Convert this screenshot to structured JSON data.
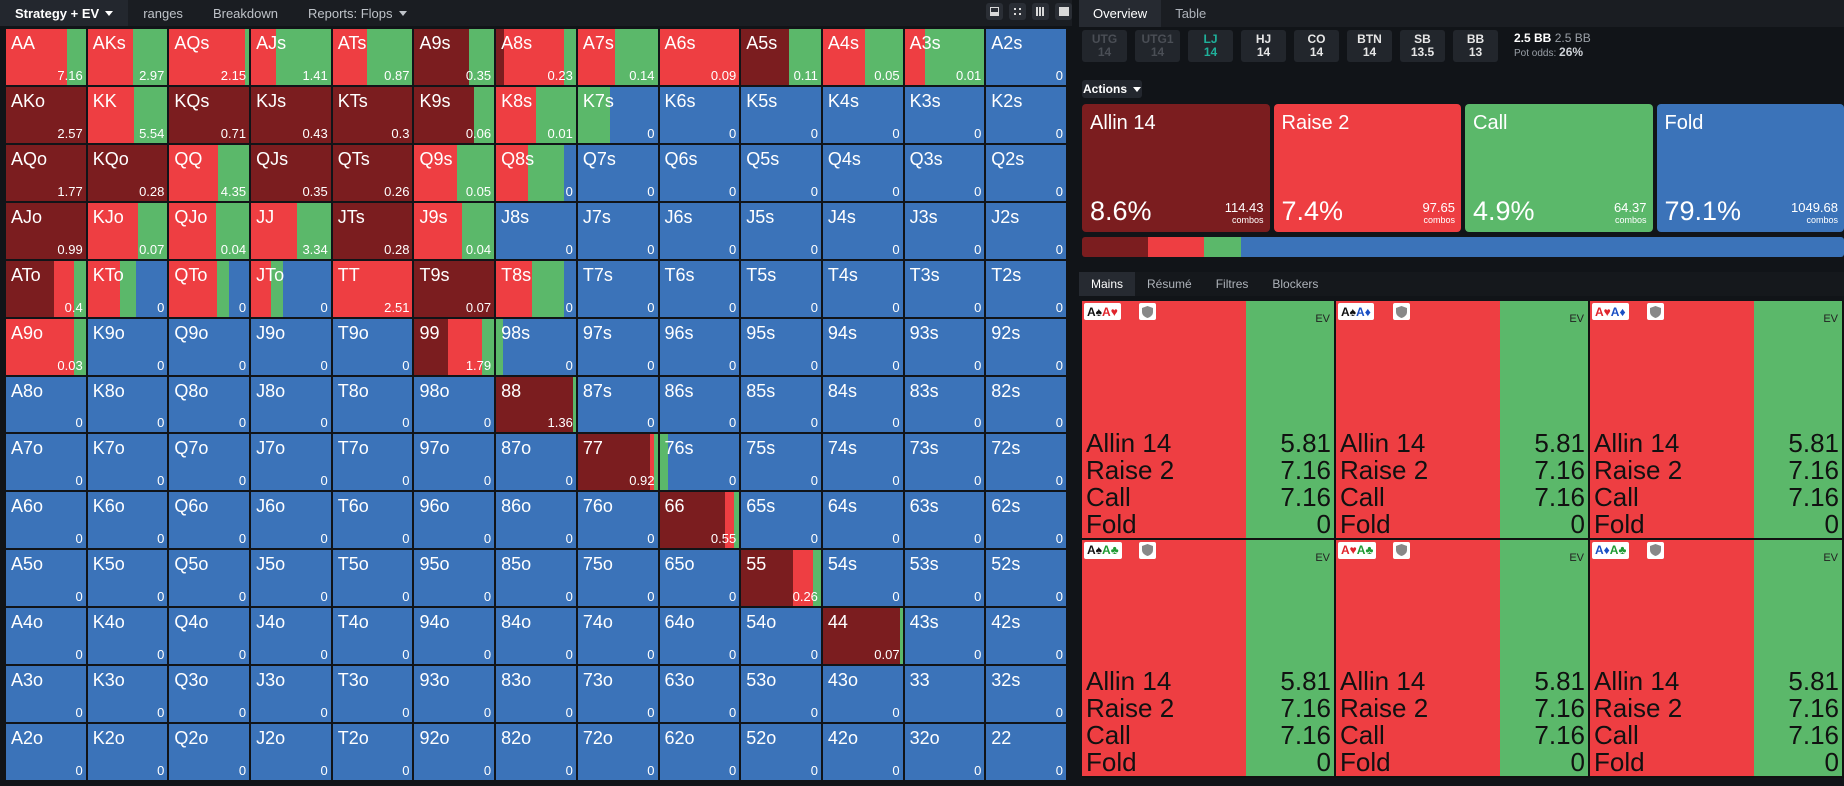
{
  "colors": {
    "allin": "#7b1d1f",
    "raise": "#ee3e42",
    "call": "#5bb86a",
    "fold": "#3b73b9"
  },
  "topbar": {
    "tabs": [
      {
        "label": "Strategy + EV",
        "caret": true,
        "active": true
      },
      {
        "label": "ranges"
      },
      {
        "label": "Breakdown"
      },
      {
        "label": "Reports: Flops",
        "caret": true
      }
    ],
    "view_icons": [
      "panel-icon",
      "expand-icon",
      "grid-icon",
      "fullscreen-icon"
    ]
  },
  "grid": [
    [
      [
        "AA",
        0,
        77,
        23,
        0,
        "7.16"
      ],
      [
        "AKs",
        0,
        57,
        43,
        0,
        "2.97"
      ],
      [
        "AQs",
        0,
        95,
        5,
        0,
        "2.15"
      ],
      [
        "AJs",
        0,
        31,
        69,
        0,
        "1.41"
      ],
      [
        "ATs",
        0,
        43,
        57,
        0,
        "0.87"
      ],
      [
        "A9s",
        68,
        0,
        32,
        0,
        "0.35"
      ],
      [
        "A8s",
        10,
        75,
        15,
        0,
        "0.23"
      ],
      [
        "A7s",
        0,
        46,
        54,
        0,
        "0.14"
      ],
      [
        "A6s",
        0,
        100,
        0,
        0,
        "0.09"
      ],
      [
        "A5s",
        60,
        0,
        40,
        0,
        "0.11"
      ],
      [
        "A4s",
        0,
        53,
        47,
        0,
        "0.05"
      ],
      [
        "A3s",
        0,
        25,
        75,
        0,
        "0.01"
      ],
      [
        "A2s",
        0,
        0,
        0,
        100,
        "0"
      ]
    ],
    [
      [
        "AKo",
        100,
        0,
        0,
        0,
        "2.57"
      ],
      [
        "KK",
        0,
        58,
        42,
        0,
        "5.54"
      ],
      [
        "KQs",
        100,
        0,
        0,
        0,
        "0.71"
      ],
      [
        "KJs",
        100,
        0,
        0,
        0,
        "0.43"
      ],
      [
        "KTs",
        100,
        0,
        0,
        0,
        "0.3"
      ],
      [
        "K9s",
        75,
        0,
        25,
        0,
        "0.06"
      ],
      [
        "K8s",
        0,
        50,
        50,
        0,
        "0.01"
      ],
      [
        "K7s",
        0,
        0,
        40,
        60,
        "0"
      ],
      [
        "K6s",
        0,
        0,
        0,
        100,
        "0"
      ],
      [
        "K5s",
        0,
        0,
        0,
        100,
        "0"
      ],
      [
        "K4s",
        0,
        0,
        0,
        100,
        "0"
      ],
      [
        "K3s",
        0,
        0,
        0,
        100,
        "0"
      ],
      [
        "K2s",
        0,
        0,
        0,
        100,
        "0"
      ]
    ],
    [
      [
        "AQo",
        100,
        0,
        0,
        0,
        "1.77"
      ],
      [
        "KQo",
        100,
        0,
        0,
        0,
        "0.28"
      ],
      [
        "QQ",
        0,
        61,
        39,
        0,
        "4.35"
      ],
      [
        "QJs",
        100,
        0,
        0,
        0,
        "0.35"
      ],
      [
        "QTs",
        100,
        0,
        0,
        0,
        "0.26"
      ],
      [
        "Q9s",
        0,
        53,
        47,
        0,
        "0.05"
      ],
      [
        "Q8s",
        0,
        40,
        45,
        15,
        "0"
      ],
      [
        "Q7s",
        0,
        0,
        0,
        100,
        "0"
      ],
      [
        "Q6s",
        0,
        0,
        0,
        100,
        "0"
      ],
      [
        "Q5s",
        0,
        0,
        0,
        100,
        "0"
      ],
      [
        "Q4s",
        0,
        0,
        0,
        100,
        "0"
      ],
      [
        "Q3s",
        0,
        0,
        0,
        100,
        "0"
      ],
      [
        "Q2s",
        0,
        0,
        0,
        100,
        "0"
      ]
    ],
    [
      [
        "AJo",
        100,
        0,
        0,
        0,
        "0.99"
      ],
      [
        "KJo",
        0,
        63,
        37,
        0,
        "0.07"
      ],
      [
        "QJo",
        0,
        58,
        42,
        0,
        "0.04"
      ],
      [
        "JJ",
        0,
        58,
        42,
        0,
        "3.34"
      ],
      [
        "JTs",
        100,
        0,
        0,
        0,
        "0.28"
      ],
      [
        "J9s",
        0,
        60,
        40,
        0,
        "0.04"
      ],
      [
        "J8s",
        0,
        0,
        0,
        100,
        "0"
      ],
      [
        "J7s",
        0,
        0,
        0,
        100,
        "0"
      ],
      [
        "J6s",
        0,
        0,
        0,
        100,
        "0"
      ],
      [
        "J5s",
        0,
        0,
        0,
        100,
        "0"
      ],
      [
        "J4s",
        0,
        0,
        0,
        100,
        "0"
      ],
      [
        "J3s",
        0,
        0,
        0,
        100,
        "0"
      ],
      [
        "J2s",
        0,
        0,
        0,
        100,
        "0"
      ]
    ],
    [
      [
        "ATo",
        60,
        25,
        15,
        0,
        "0.4"
      ],
      [
        "KTo",
        0,
        40,
        20,
        40,
        "0"
      ],
      [
        "QTo",
        0,
        60,
        15,
        25,
        "0"
      ],
      [
        "JTo",
        0,
        25,
        15,
        60,
        "0"
      ],
      [
        "TT",
        0,
        100,
        0,
        0,
        "2.51"
      ],
      [
        "T9s",
        100,
        0,
        0,
        0,
        "0.07"
      ],
      [
        "T8s",
        0,
        45,
        40,
        15,
        "0"
      ],
      [
        "T7s",
        0,
        0,
        0,
        100,
        "0"
      ],
      [
        "T6s",
        0,
        0,
        0,
        100,
        "0"
      ],
      [
        "T5s",
        0,
        0,
        0,
        100,
        "0"
      ],
      [
        "T4s",
        0,
        0,
        0,
        100,
        "0"
      ],
      [
        "T3s",
        0,
        0,
        0,
        100,
        "0"
      ],
      [
        "T2s",
        0,
        0,
        0,
        100,
        "0"
      ]
    ],
    [
      [
        "A9o",
        0,
        85,
        15,
        0,
        "0.03"
      ],
      [
        "K9o",
        0,
        0,
        0,
        100,
        "0"
      ],
      [
        "Q9o",
        0,
        0,
        0,
        100,
        "0"
      ],
      [
        "J9o",
        0,
        0,
        0,
        100,
        "0"
      ],
      [
        "T9o",
        0,
        0,
        0,
        100,
        "0"
      ],
      [
        "99",
        42,
        43,
        15,
        0,
        "1.79"
      ],
      [
        "98s",
        0,
        0,
        8,
        92,
        "0"
      ],
      [
        "97s",
        0,
        0,
        0,
        100,
        "0"
      ],
      [
        "96s",
        0,
        0,
        0,
        100,
        "0"
      ],
      [
        "95s",
        0,
        0,
        0,
        100,
        "0"
      ],
      [
        "94s",
        0,
        0,
        0,
        100,
        "0"
      ],
      [
        "93s",
        0,
        0,
        0,
        100,
        "0"
      ],
      [
        "92s",
        0,
        0,
        0,
        100,
        "0"
      ]
    ],
    [
      [
        "A8o",
        0,
        0,
        0,
        100,
        "0"
      ],
      [
        "K8o",
        0,
        0,
        0,
        100,
        "0"
      ],
      [
        "Q8o",
        0,
        0,
        0,
        100,
        "0"
      ],
      [
        "J8o",
        0,
        0,
        0,
        100,
        "0"
      ],
      [
        "T8o",
        0,
        0,
        0,
        100,
        "0"
      ],
      [
        "98o",
        0,
        0,
        0,
        100,
        "0"
      ],
      [
        "88",
        96,
        0,
        4,
        0,
        "1.36"
      ],
      [
        "87s",
        0,
        0,
        0,
        100,
        "0"
      ],
      [
        "86s",
        0,
        0,
        0,
        100,
        "0"
      ],
      [
        "85s",
        0,
        0,
        0,
        100,
        "0"
      ],
      [
        "84s",
        0,
        0,
        0,
        100,
        "0"
      ],
      [
        "83s",
        0,
        0,
        0,
        100,
        "0"
      ],
      [
        "82s",
        0,
        0,
        0,
        100,
        "0"
      ]
    ],
    [
      [
        "A7o",
        0,
        0,
        0,
        100,
        "0"
      ],
      [
        "K7o",
        0,
        0,
        0,
        100,
        "0"
      ],
      [
        "Q7o",
        0,
        0,
        0,
        100,
        "0"
      ],
      [
        "J7o",
        0,
        0,
        0,
        100,
        "0"
      ],
      [
        "T7o",
        0,
        0,
        0,
        100,
        "0"
      ],
      [
        "97o",
        0,
        0,
        0,
        100,
        "0"
      ],
      [
        "87o",
        0,
        0,
        0,
        100,
        "0"
      ],
      [
        "77",
        90,
        6,
        4,
        0,
        "0.92"
      ],
      [
        "76s",
        0,
        0,
        10,
        90,
        "0"
      ],
      [
        "75s",
        0,
        0,
        0,
        100,
        "0"
      ],
      [
        "74s",
        0,
        0,
        0,
        100,
        "0"
      ],
      [
        "73s",
        0,
        0,
        0,
        100,
        "0"
      ],
      [
        "72s",
        0,
        0,
        0,
        100,
        "0"
      ]
    ],
    [
      [
        "A6o",
        0,
        0,
        0,
        100,
        "0"
      ],
      [
        "K6o",
        0,
        0,
        0,
        100,
        "0"
      ],
      [
        "Q6o",
        0,
        0,
        0,
        100,
        "0"
      ],
      [
        "J6o",
        0,
        0,
        0,
        100,
        "0"
      ],
      [
        "T6o",
        0,
        0,
        0,
        100,
        "0"
      ],
      [
        "96o",
        0,
        0,
        0,
        100,
        "0"
      ],
      [
        "86o",
        0,
        0,
        0,
        100,
        "0"
      ],
      [
        "76o",
        0,
        0,
        0,
        100,
        "0"
      ],
      [
        "66",
        82,
        12,
        6,
        0,
        "0.55"
      ],
      [
        "65s",
        0,
        0,
        0,
        100,
        "0"
      ],
      [
        "64s",
        0,
        0,
        0,
        100,
        "0"
      ],
      [
        "63s",
        0,
        0,
        0,
        100,
        "0"
      ],
      [
        "62s",
        0,
        0,
        0,
        100,
        "0"
      ]
    ],
    [
      [
        "A5o",
        0,
        0,
        0,
        100,
        "0"
      ],
      [
        "K5o",
        0,
        0,
        0,
        100,
        "0"
      ],
      [
        "Q5o",
        0,
        0,
        0,
        100,
        "0"
      ],
      [
        "J5o",
        0,
        0,
        0,
        100,
        "0"
      ],
      [
        "T5o",
        0,
        0,
        0,
        100,
        "0"
      ],
      [
        "95o",
        0,
        0,
        0,
        100,
        "0"
      ],
      [
        "85o",
        0,
        0,
        0,
        100,
        "0"
      ],
      [
        "75o",
        0,
        0,
        0,
        100,
        "0"
      ],
      [
        "65o",
        0,
        0,
        0,
        100,
        "0"
      ],
      [
        "55",
        65,
        25,
        10,
        0,
        "0.26"
      ],
      [
        "54s",
        0,
        0,
        0,
        100,
        "0"
      ],
      [
        "53s",
        0,
        0,
        0,
        100,
        "0"
      ],
      [
        "52s",
        0,
        0,
        0,
        100,
        "0"
      ]
    ],
    [
      [
        "A4o",
        0,
        0,
        0,
        100,
        "0"
      ],
      [
        "K4o",
        0,
        0,
        0,
        100,
        "0"
      ],
      [
        "Q4o",
        0,
        0,
        0,
        100,
        "0"
      ],
      [
        "J4o",
        0,
        0,
        0,
        100,
        "0"
      ],
      [
        "T4o",
        0,
        0,
        0,
        100,
        "0"
      ],
      [
        "94o",
        0,
        0,
        0,
        100,
        "0"
      ],
      [
        "84o",
        0,
        0,
        0,
        100,
        "0"
      ],
      [
        "74o",
        0,
        0,
        0,
        100,
        "0"
      ],
      [
        "64o",
        0,
        0,
        0,
        100,
        "0"
      ],
      [
        "54o",
        0,
        0,
        0,
        100,
        "0"
      ],
      [
        "44",
        97,
        0,
        3,
        0,
        "0.07"
      ],
      [
        "43s",
        0,
        0,
        0,
        100,
        "0"
      ],
      [
        "42s",
        0,
        0,
        0,
        100,
        "0"
      ]
    ],
    [
      [
        "A3o",
        0,
        0,
        0,
        100,
        "0"
      ],
      [
        "K3o",
        0,
        0,
        0,
        100,
        "0"
      ],
      [
        "Q3o",
        0,
        0,
        0,
        100,
        "0"
      ],
      [
        "J3o",
        0,
        0,
        0,
        100,
        "0"
      ],
      [
        "T3o",
        0,
        0,
        0,
        100,
        "0"
      ],
      [
        "93o",
        0,
        0,
        0,
        100,
        "0"
      ],
      [
        "83o",
        0,
        0,
        0,
        100,
        "0"
      ],
      [
        "73o",
        0,
        0,
        0,
        100,
        "0"
      ],
      [
        "63o",
        0,
        0,
        0,
        100,
        "0"
      ],
      [
        "53o",
        0,
        0,
        0,
        100,
        "0"
      ],
      [
        "43o",
        0,
        0,
        0,
        100,
        "0"
      ],
      [
        "33",
        0,
        0,
        0,
        100,
        ""
      ],
      [
        "32s",
        0,
        0,
        0,
        100,
        "0"
      ]
    ],
    [
      [
        "A2o",
        0,
        0,
        0,
        100,
        "0"
      ],
      [
        "K2o",
        0,
        0,
        0,
        100,
        "0"
      ],
      [
        "Q2o",
        0,
        0,
        0,
        100,
        "0"
      ],
      [
        "J2o",
        0,
        0,
        0,
        100,
        "0"
      ],
      [
        "T2o",
        0,
        0,
        0,
        100,
        "0"
      ],
      [
        "92o",
        0,
        0,
        0,
        100,
        "0"
      ],
      [
        "82o",
        0,
        0,
        0,
        100,
        "0"
      ],
      [
        "72o",
        0,
        0,
        0,
        100,
        "0"
      ],
      [
        "62o",
        0,
        0,
        0,
        100,
        "0"
      ],
      [
        "52o",
        0,
        0,
        0,
        100,
        "0"
      ],
      [
        "42o",
        0,
        0,
        0,
        100,
        "0"
      ],
      [
        "32o",
        0,
        0,
        0,
        100,
        "0"
      ],
      [
        "22",
        0,
        0,
        0,
        100,
        "0"
      ]
    ]
  ],
  "right": {
    "tabs": [
      {
        "label": "Overview",
        "active": true
      },
      {
        "label": "Table"
      }
    ],
    "positions": [
      {
        "name": "UTG",
        "stack": "14",
        "state": "dim"
      },
      {
        "name": "UTG1",
        "stack": "14",
        "state": "dim"
      },
      {
        "name": "LJ",
        "stack": "14",
        "state": "act"
      },
      {
        "name": "HJ",
        "stack": "14"
      },
      {
        "name": "CO",
        "stack": "14"
      },
      {
        "name": "BTN",
        "stack": "14"
      },
      {
        "name": "SB",
        "stack": "13.5"
      },
      {
        "name": "BB",
        "stack": "13"
      }
    ],
    "pot": {
      "bb": "2.5 BB",
      "bb2": "2.5 BB",
      "odds_label": "Pot odds:",
      "odds": "26%"
    },
    "actions_label": "Actions",
    "action_cards": [
      {
        "name": "Allin 14",
        "pct": "8.6%",
        "combos": "114.43",
        "sub": "combos",
        "key": "allin"
      },
      {
        "name": "Raise 2",
        "pct": "7.4%",
        "combos": "97.65",
        "sub": "combos",
        "key": "raise"
      },
      {
        "name": "Call",
        "pct": "4.9%",
        "combos": "64.37",
        "sub": "combos",
        "key": "call"
      },
      {
        "name": "Fold",
        "pct": "79.1%",
        "combos": "1049.68",
        "sub": "combos",
        "key": "fold"
      }
    ],
    "freq": [
      8.6,
      7.4,
      4.9,
      79.1
    ],
    "bottom_tabs": [
      {
        "label": "Mains",
        "active": true
      },
      {
        "label": "Résumé"
      },
      {
        "label": "Filtres"
      },
      {
        "label": "Blockers"
      }
    ],
    "ev_label": "EV",
    "combos": [
      {
        "cards": [
          [
            "A",
            "♠",
            "blk"
          ],
          [
            "A",
            "♥",
            "red"
          ]
        ]
      },
      {
        "cards": [
          [
            "A",
            "♠",
            "blk"
          ],
          [
            "A",
            "♦",
            "blu"
          ]
        ]
      },
      {
        "cards": [
          [
            "A",
            "♥",
            "red"
          ],
          [
            "A",
            "♦",
            "blu"
          ]
        ]
      },
      {
        "cards": [
          [
            "A",
            "♠",
            "blk"
          ],
          [
            "A",
            "♣",
            "grn"
          ]
        ]
      },
      {
        "cards": [
          [
            "A",
            "♥",
            "red"
          ],
          [
            "A",
            "♣",
            "grn"
          ]
        ]
      },
      {
        "cards": [
          [
            "A",
            "♦",
            "blu"
          ],
          [
            "A",
            "♣",
            "grn"
          ]
        ]
      }
    ],
    "combo_split": [
      0,
      65,
      35,
      0
    ],
    "combo_rows": [
      [
        "Allin 14",
        "5.81"
      ],
      [
        "Raise 2",
        "7.16"
      ],
      [
        "Call",
        "7.16"
      ],
      [
        "Fold",
        "0"
      ]
    ]
  }
}
